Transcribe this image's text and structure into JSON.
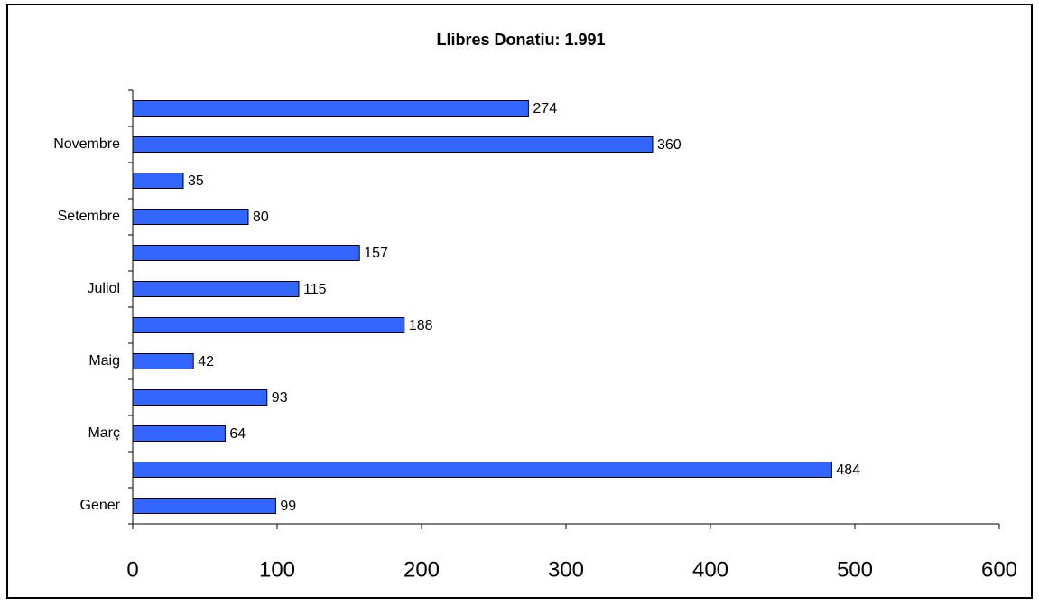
{
  "chart_data": {
    "type": "bar",
    "orientation": "horizontal",
    "title": "Llibres Donatiu: 1.991",
    "categories": [
      "Gener",
      null,
      "Març",
      null,
      "Maig",
      null,
      "Juliol",
      null,
      "Setembre",
      null,
      "Novembre",
      null
    ],
    "values": [
      99,
      484,
      64,
      93,
      42,
      188,
      115,
      157,
      80,
      35,
      360,
      274
    ],
    "color": "#3366ff",
    "xlim": [
      0,
      600
    ],
    "xticks": [
      0,
      100,
      200,
      300,
      400,
      500,
      600
    ],
    "grid": false
  }
}
